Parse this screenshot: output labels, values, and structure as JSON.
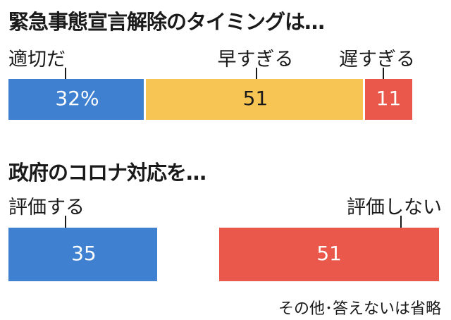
{
  "colors": {
    "blue": "#3f80d0",
    "yellow": "#f6c553",
    "red": "#e9584a",
    "text": "#1a1a1a",
    "white": "#ffffff"
  },
  "chart_data": [
    {
      "type": "bar",
      "orientation": "horizontal-stacked",
      "title": "緊急事態宣言解除のタイミングは…",
      "unit": "%",
      "series": [
        {
          "name": "適切だ",
          "value": 32,
          "label": "32%",
          "color": "#3f80d0"
        },
        {
          "name": "早すぎる",
          "value": 51,
          "label": "51",
          "color": "#f6c553"
        },
        {
          "name": "遅すぎる",
          "value": 11,
          "label": "11",
          "color": "#e9584a"
        }
      ]
    },
    {
      "type": "bar",
      "orientation": "horizontal-stacked",
      "title": "政府のコロナ対応を…",
      "unit": "%",
      "series": [
        {
          "name": "評価する",
          "value": 35,
          "label": "35",
          "color": "#3f80d0"
        },
        {
          "name": "その他・答えない",
          "value": 14,
          "label": "",
          "color": "#ffffff"
        },
        {
          "name": "評価しない",
          "value": 51,
          "label": "51",
          "color": "#e9584a"
        }
      ],
      "note": "その他･答えないは省略"
    }
  ]
}
